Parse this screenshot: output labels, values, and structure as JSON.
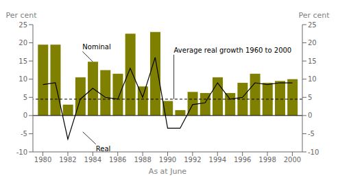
{
  "chart_data": {
    "type": "bar",
    "x": [
      1980,
      1981,
      1982,
      1983,
      1984,
      1985,
      1986,
      1987,
      1988,
      1989,
      1990,
      1991,
      1992,
      1993,
      1994,
      1995,
      1996,
      1997,
      1998,
      1999,
      2000
    ],
    "series": [
      {
        "type": "bar",
        "color": "#808000",
        "values": [
          19.5,
          19.5,
          3.0,
          10.5,
          14.8,
          12.5,
          11.5,
          22.5,
          8.0,
          23.0,
          4.0,
          1.5,
          6.5,
          6.2,
          10.5,
          6.2,
          9.0,
          11.5,
          9.0,
          9.5,
          10.0
        ]
      },
      {
        "type": "line",
        "color": "#000000",
        "line_style": "solid",
        "values": [
          8.5,
          9.0,
          -6.5,
          4.5,
          7.5,
          5.0,
          4.5,
          13.0,
          5.0,
          16.0,
          -3.5,
          -3.5,
          3.0,
          3.5,
          9.0,
          4.5,
          5.0,
          9.0,
          8.5,
          9.0,
          9.0
        ]
      }
    ],
    "xlim": [
      1979.2,
      2000.8
    ],
    "xticks": [
      1980,
      1982,
      1984,
      1986,
      1988,
      1990,
      1992,
      1994,
      1996,
      1998,
      2000
    ],
    "ylim": [
      -10,
      25
    ],
    "yticks": [
      -10,
      -5,
      0,
      5,
      10,
      15,
      20,
      25
    ],
    "y2lim": [
      -10,
      25
    ],
    "y2ticks": [
      -10,
      -5,
      0,
      5,
      10,
      15,
      20,
      25
    ],
    "xlabel": "As at June",
    "ylabel": "Per cent",
    "y2label": "Per cent",
    "grid": false,
    "reference_lines": [
      {
        "y": 4.5,
        "color": "#000000",
        "line_style": "dashed"
      },
      {
        "y": 0,
        "color": "#000000",
        "line_style": "solid"
      }
    ],
    "annotations": [
      {
        "text": "Nominal",
        "x": 1984,
        "y": 14.8
      },
      {
        "text": "Real",
        "x": 1983.2,
        "y": -4.5
      },
      {
        "text": "Average real growth 1960 to 2000",
        "x": 1990.5,
        "y": 4.5
      }
    ]
  }
}
